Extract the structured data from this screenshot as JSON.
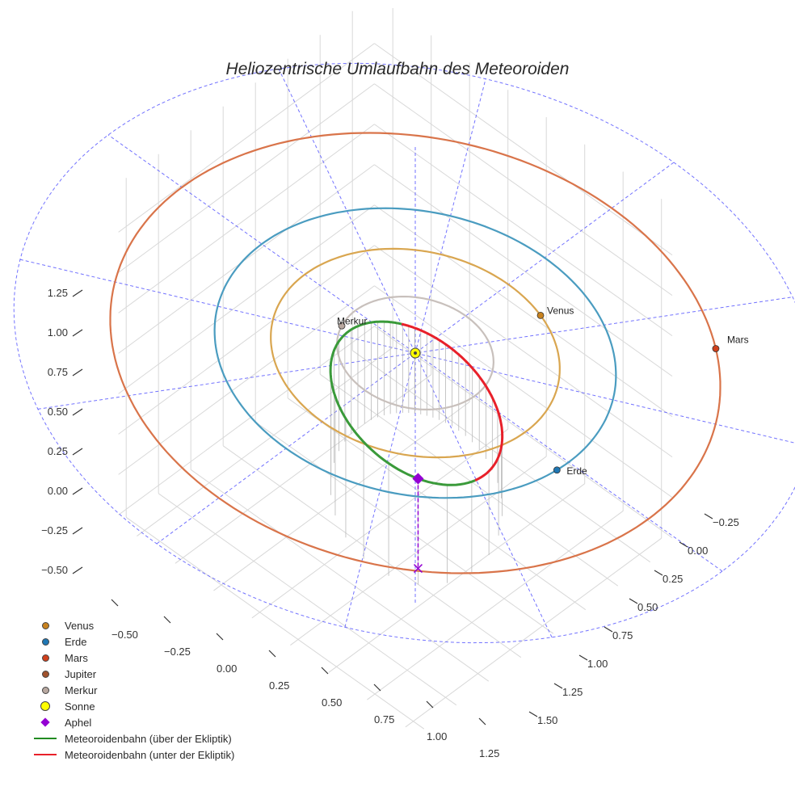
{
  "chart_data": {
    "type": "line",
    "title": "Heliozentrische Umlaufbahn des Meteoroiden",
    "x_ticks": [
      "−0.50",
      "−0.25",
      "0.00",
      "0.25",
      "0.50",
      "0.75",
      "1.00",
      "1.25"
    ],
    "y_ticks": [
      "−0.25",
      "0.00",
      "0.25",
      "0.50",
      "0.75",
      "1.00",
      "1.25",
      "1.50"
    ],
    "z_ticks": [
      "−0.50",
      "−0.25",
      "0.00",
      "0.25",
      "0.50",
      "0.75",
      "1.00",
      "1.25"
    ],
    "grid": true,
    "legend_position": "bottom-left",
    "legend": [
      {
        "label": "Venus",
        "symbol": "dot",
        "color": "#c8821e"
      },
      {
        "label": "Erde",
        "symbol": "dot",
        "color": "#1f77b4"
      },
      {
        "label": "Mars",
        "symbol": "dot",
        "color": "#d0401c"
      },
      {
        "label": "Jupiter",
        "symbol": "dot",
        "color": "#a0522d"
      },
      {
        "label": "Merkur",
        "symbol": "dot",
        "color": "#b8a8a0"
      },
      {
        "label": "Sonne",
        "symbol": "bigdot",
        "color": "#ffff00"
      },
      {
        "label": "Aphel",
        "symbol": "diamond",
        "color": "#9400d3"
      },
      {
        "label": "Meteoroidenbahn (über der Ekliptik)",
        "symbol": "line",
        "color": "#228b22"
      },
      {
        "label": "Meteoroidenbahn (unter der Ekliptik)",
        "symbol": "line",
        "color": "#e8202a"
      }
    ],
    "planet_labels": {
      "mars": "Mars",
      "venus": "Venus",
      "merkur": "Merkur",
      "erde": "Erde"
    },
    "orbits": [
      {
        "name": "Merkur",
        "semi_major_au": 0.39,
        "color": "#c8c0bc"
      },
      {
        "name": "Venus",
        "semi_major_au": 0.72,
        "color": "#d9a650"
      },
      {
        "name": "Erde",
        "semi_major_au": 1.0,
        "color": "#4a9cc0"
      },
      {
        "name": "Mars",
        "semi_major_au": 1.52,
        "color": "#d9744a"
      }
    ],
    "meteoroid": {
      "perihelion_au": 0.2,
      "aphelion_au": 1.0,
      "colors": {
        "above": "#3a9a3a",
        "below": "#e8202a"
      }
    },
    "colors": {
      "ecliptic_grid": "#5a5aff",
      "aphel_marker": "#9400d3",
      "grid": "#d8d8d8"
    }
  }
}
